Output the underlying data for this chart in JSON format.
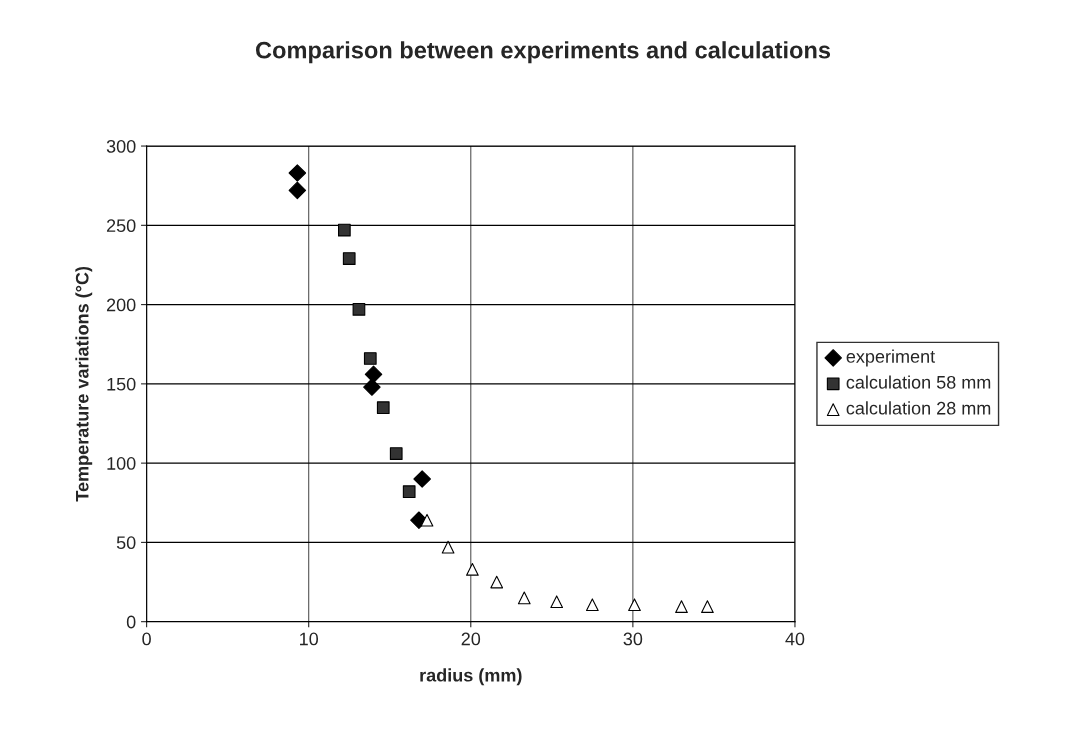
{
  "chart_data": {
    "type": "scatter",
    "title": "Comparison between experiments and calculations",
    "xlabel": "radius (mm)",
    "ylabel": "Temperature variations (°C)",
    "series": [
      {
        "name": "experiment",
        "color": "#000000",
        "marker": "diamond",
        "x": [
          9.3,
          9.3,
          14.0,
          13.9,
          17.0,
          16.8
        ],
        "values": [
          283,
          272,
          156,
          148,
          90,
          64
        ]
      },
      {
        "name": "calculation 58 mm",
        "color": "#333333",
        "marker": "square",
        "x": [
          12.2,
          12.5,
          13.1,
          13.8,
          14.6,
          15.4,
          16.2
        ],
        "values": [
          247,
          229,
          197,
          166,
          135,
          106,
          82
        ]
      },
      {
        "name": "calculation 28 mm",
        "color": "#ffffff",
        "marker": "triangle",
        "x": [
          17.3,
          18.6,
          20.1,
          21.6,
          23.3,
          25.3,
          27.5,
          30.1,
          33.0,
          34.6
        ],
        "values": [
          64,
          47,
          33,
          25,
          15,
          12.6,
          10.7,
          10.7,
          9.5,
          9.5
        ]
      }
    ],
    "xlim": [
      0,
      40
    ],
    "xticks": [
      0,
      10,
      20,
      30,
      40
    ],
    "ylim": [
      0,
      300
    ],
    "yticks": [
      0,
      50,
      100,
      150,
      200,
      250,
      300
    ],
    "grid": true,
    "legend": "right"
  }
}
